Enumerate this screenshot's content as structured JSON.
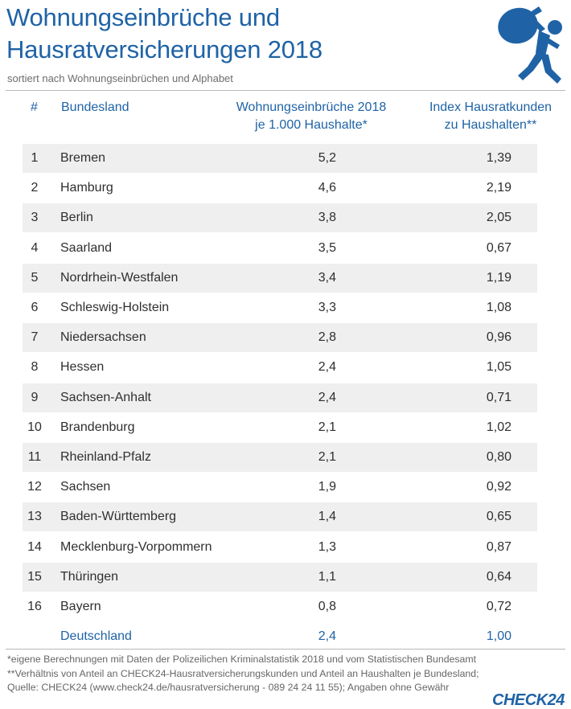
{
  "header": {
    "title": "Wohnungseinbrüche und\nHausratversicherungen 2018",
    "subtitle": "sortiert nach Wohnungseinbrüchen und Alphabet",
    "icon": "burglar-icon"
  },
  "colors": {
    "accent": "#1f63a6",
    "text": "#2f2f2f",
    "stripe": "#efefef",
    "muted": "#6d6d6d"
  },
  "chart_data": {
    "type": "table",
    "columns": [
      "#",
      "Bundesland",
      "Wohnungseinbrüche 2018\nje 1.000 Haushalte*",
      "Index Hausratkunden\nzu Haushalten**"
    ],
    "rows": [
      {
        "rank": "1",
        "state": "Bremen",
        "burglaries": "5,2",
        "index": "1,39"
      },
      {
        "rank": "2",
        "state": "Hamburg",
        "burglaries": "4,6",
        "index": "2,19"
      },
      {
        "rank": "3",
        "state": "Berlin",
        "burglaries": "3,8",
        "index": "2,05"
      },
      {
        "rank": "4",
        "state": "Saarland",
        "burglaries": "3,5",
        "index": "0,67"
      },
      {
        "rank": "5",
        "state": "Nordrhein-Westfalen",
        "burglaries": "3,4",
        "index": "1,19"
      },
      {
        "rank": "6",
        "state": "Schleswig-Holstein",
        "burglaries": "3,3",
        "index": "1,08"
      },
      {
        "rank": "7",
        "state": "Niedersachsen",
        "burglaries": "2,8",
        "index": "0,96"
      },
      {
        "rank": "8",
        "state": "Hessen",
        "burglaries": "2,4",
        "index": "1,05"
      },
      {
        "rank": "9",
        "state": "Sachsen-Anhalt",
        "burglaries": "2,4",
        "index": "0,71"
      },
      {
        "rank": "10",
        "state": "Brandenburg",
        "burglaries": "2,1",
        "index": "1,02"
      },
      {
        "rank": "11",
        "state": "Rheinland-Pfalz",
        "burglaries": "2,1",
        "index": "0,80"
      },
      {
        "rank": "12",
        "state": "Sachsen",
        "burglaries": "1,9",
        "index": "0,92"
      },
      {
        "rank": "13",
        "state": "Baden-Württemberg",
        "burglaries": "1,4",
        "index": "0,65"
      },
      {
        "rank": "14",
        "state": "Mecklenburg-Vorpommern",
        "burglaries": "1,3",
        "index": "0,87"
      },
      {
        "rank": "15",
        "state": "Thüringen",
        "burglaries": "1,1",
        "index": "0,64"
      },
      {
        "rank": "16",
        "state": "Bayern",
        "burglaries": "0,8",
        "index": "0,72"
      }
    ],
    "total": {
      "rank": "",
      "state": "Deutschland",
      "burglaries": "2,4",
      "index": "1,00"
    }
  },
  "footer": {
    "lines": [
      "*eigene Berechnungen mit Daten der Polizeilichen Kriminalstatistik 2018 und vom Statistischen Bundesamt",
      "**Verhältnis von Anteil an CHECK24-Hausratversicherungskunden und Anteil an Haushalten je Bundesland;",
      "Quelle: CHECK24 (www.check24.de/hausratversicherung - 089 24 24 11 55);  Angaben ohne Gewähr"
    ],
    "logo": "CHECK24"
  }
}
